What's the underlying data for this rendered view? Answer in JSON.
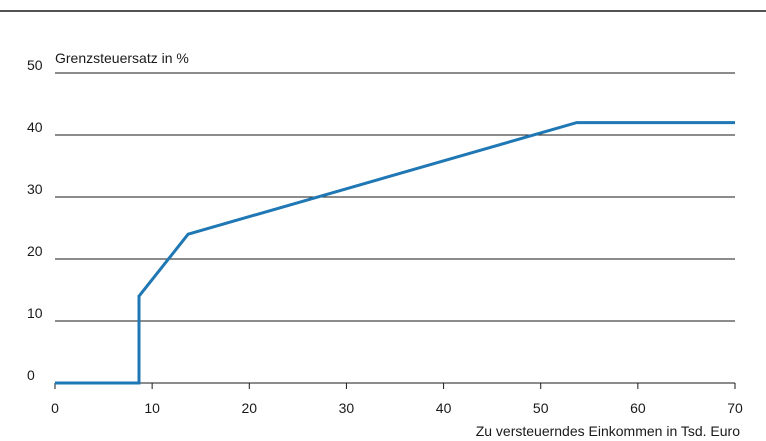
{
  "chart_data": {
    "type": "line",
    "ylabel": "Grenzsteuersatz in %",
    "xlabel": "Zu versteuerndes Einkommen in Tsd. Euro",
    "xlim": [
      0,
      70
    ],
    "ylim": [
      0,
      50
    ],
    "xticks": [
      0,
      10,
      20,
      30,
      40,
      50,
      60,
      70
    ],
    "yticks": [
      0,
      10,
      20,
      30,
      40,
      50
    ],
    "grid": "horizontal",
    "series": [
      {
        "color": "#1f77b4",
        "points": [
          {
            "x": 0,
            "y": 0
          },
          {
            "x": 8.65,
            "y": 0
          },
          {
            "x": 8.65,
            "y": 14
          },
          {
            "x": 13.7,
            "y": 24
          },
          {
            "x": 53.7,
            "y": 42
          },
          {
            "x": 70,
            "y": 42
          }
        ]
      }
    ]
  }
}
